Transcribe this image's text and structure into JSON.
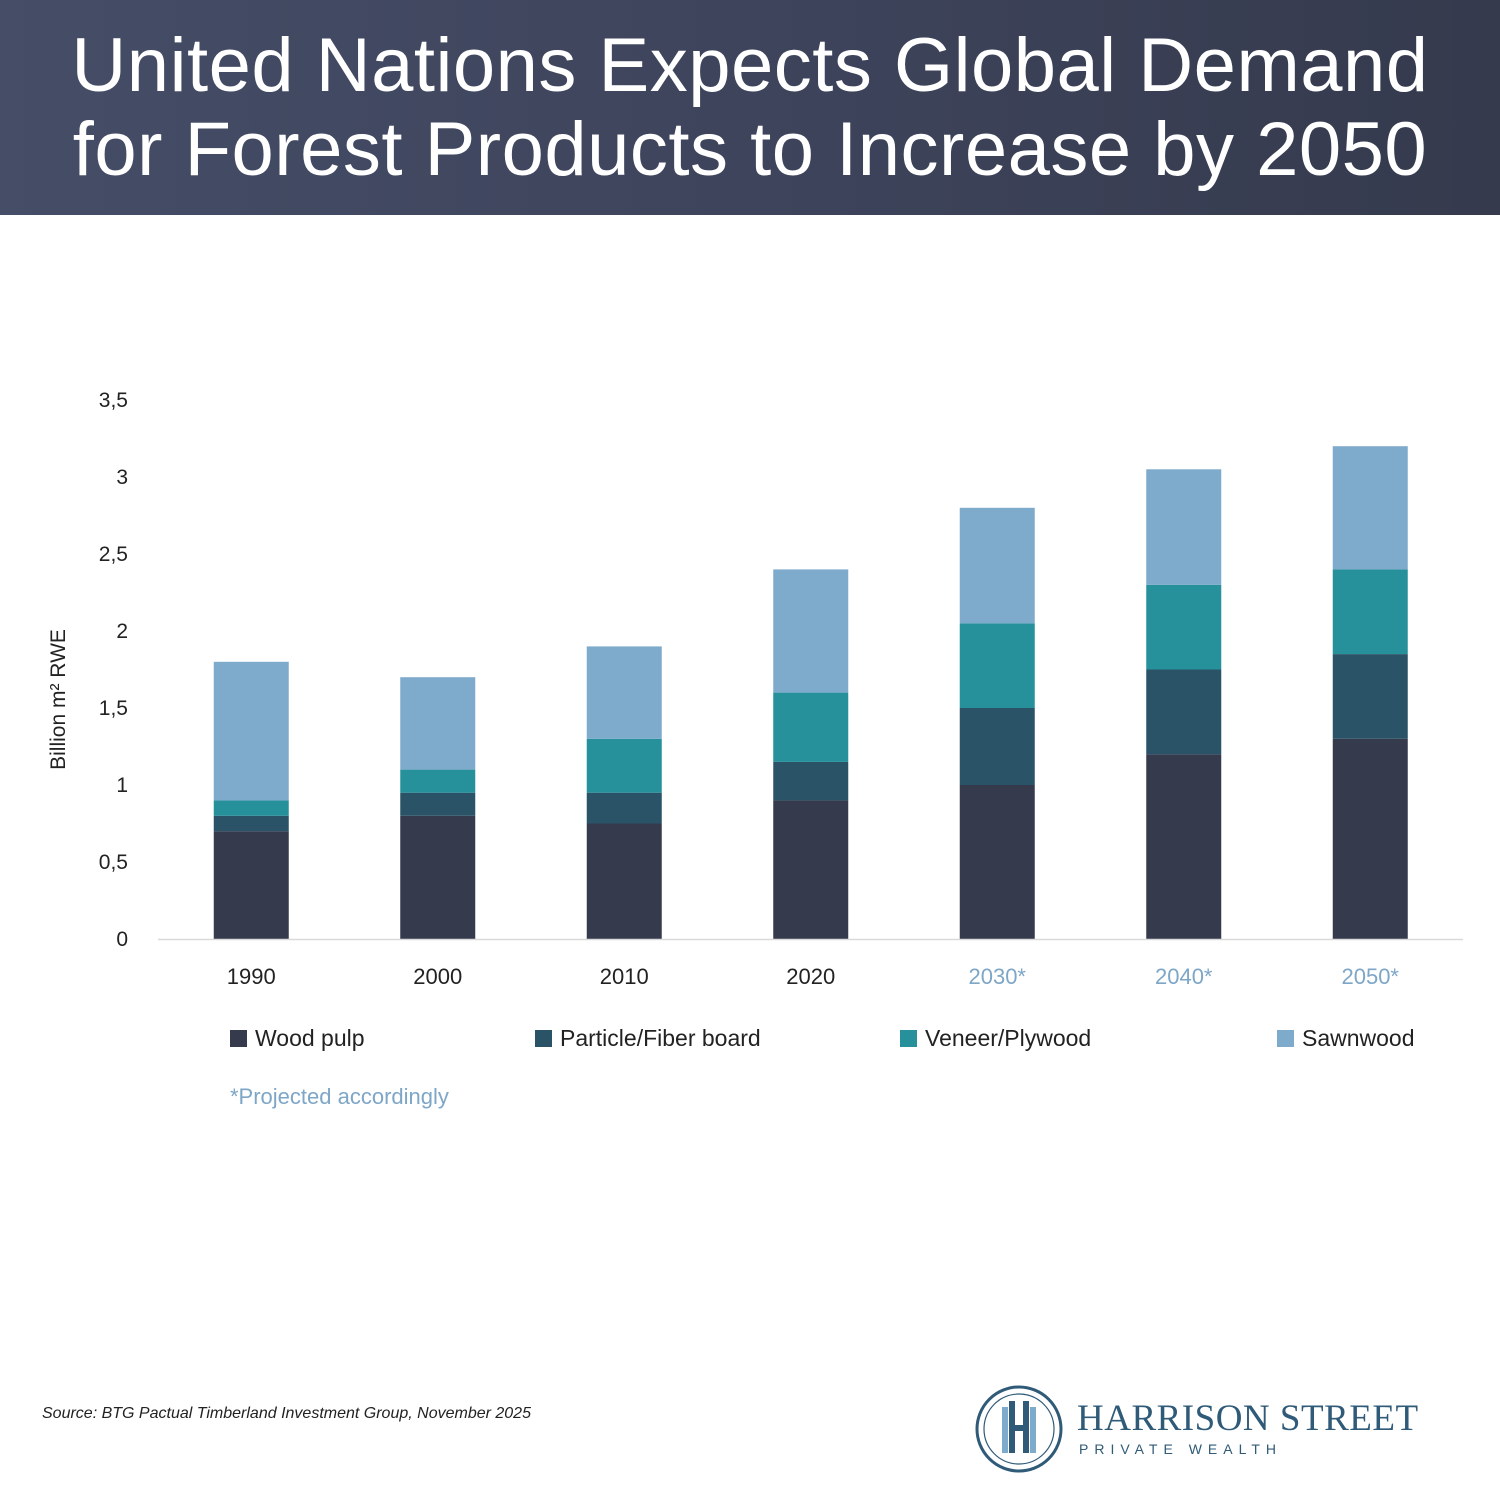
{
  "header": {
    "title_line1": "United Nations Expects Global Demand",
    "title_line2": "for Forest Products to Increase by 2050"
  },
  "chart_data": {
    "type": "bar",
    "stacked": true,
    "categories": [
      "1990",
      "2000",
      "2010",
      "2020",
      "2030*",
      "2040*",
      "2050*"
    ],
    "projected": [
      false,
      false,
      false,
      false,
      true,
      true,
      true
    ],
    "ylabel": "Billion m² RWE",
    "ylim": [
      0,
      3.5
    ],
    "yticks": [
      0,
      0.5,
      1,
      1.5,
      2,
      2.5,
      3,
      3.5
    ],
    "ytick_labels": [
      "0",
      "0,5",
      "1",
      "1,5",
      "2",
      "2,5",
      "3",
      "3,5"
    ],
    "grid": false,
    "legend_position": "bottom",
    "series": [
      {
        "name": "Wood pulp",
        "color": "#353a4d",
        "values": [
          0.7,
          0.8,
          0.75,
          0.9,
          1.0,
          1.2,
          1.3
        ]
      },
      {
        "name": "Particle/Fiber board",
        "color": "#2a5367",
        "values": [
          0.1,
          0.15,
          0.2,
          0.25,
          0.5,
          0.55,
          0.55
        ]
      },
      {
        "name": "Veneer/Plywood",
        "color": "#26909b",
        "values": [
          0.1,
          0.15,
          0.35,
          0.45,
          0.55,
          0.55,
          0.55
        ]
      },
      {
        "name": "Sawnwood",
        "color": "#7eaacb",
        "values": [
          0.9,
          0.6,
          0.6,
          0.8,
          0.75,
          0.75,
          0.8
        ]
      }
    ],
    "category_color": "#222222",
    "projected_color": "#7ea6c7"
  },
  "note": "*Projected accordingly",
  "source": "Source: BTG Pactual Timberland Investment Group, November 2025",
  "logo": {
    "title": "HARRISON STREET",
    "subtitle": "PRIVATE WEALTH",
    "color": "#2f5a78"
  }
}
